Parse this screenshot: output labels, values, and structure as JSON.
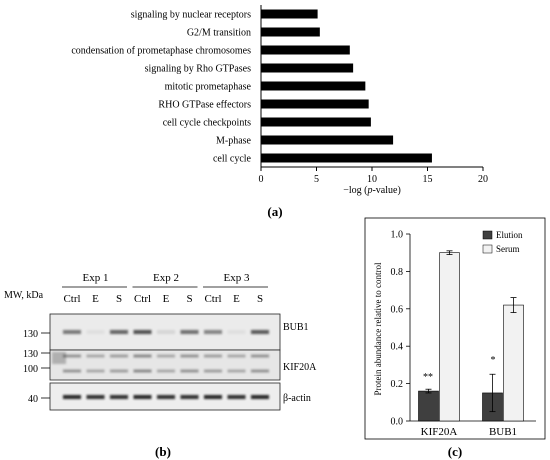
{
  "panel_a": {
    "label": "(a)",
    "xlabel": "−log (p-value)",
    "xlabel_parts": [
      "−log (",
      "p",
      "-value)"
    ]
  },
  "panel_b": {
    "label": "(b)",
    "mw_label": "MW, kDa",
    "experiments": [
      "Exp 1",
      "Exp 2",
      "Exp 3"
    ],
    "lanes": [
      "Ctrl",
      "E",
      "S",
      "Ctrl",
      "E",
      "S",
      "Ctrl",
      "E",
      "S"
    ],
    "mw_markers": [
      "130",
      "130",
      "100",
      "40"
    ],
    "proteins": [
      "BUB1",
      "KIF20A",
      "β-actin"
    ],
    "bands": {
      "BUB1": [
        0.55,
        0.05,
        0.65,
        0.75,
        0.1,
        0.6,
        0.5,
        0.05,
        0.7
      ],
      "KIF20A": [
        0.4,
        0.3,
        0.35,
        0.45,
        0.3,
        0.4,
        0.35,
        0.3,
        0.4
      ],
      "beta_actin": [
        0.95,
        0.9,
        0.9,
        0.95,
        0.9,
        0.9,
        0.95,
        0.9,
        0.95
      ]
    }
  },
  "panel_c": {
    "label": "(c)",
    "legend": [
      "Elution",
      "Serum"
    ],
    "colors": {
      "Elution": "#3f3f3f",
      "Serum": "#f2f2f2"
    },
    "annotations": [
      "**",
      "*"
    ]
  },
  "chart_data": [
    {
      "type": "bar",
      "orientation": "horizontal",
      "categories": [
        "signaling by nuclear receptors",
        "G2/M transition",
        "condensation of prometaphase chromosomes",
        "signaling by Rho GTPases",
        "mitotic prometaphase",
        "RHO GTPase effectors",
        "cell cycle checkpoints",
        "M-phase",
        "cell cycle"
      ],
      "values": [
        5.1,
        5.3,
        8.0,
        8.3,
        9.4,
        9.7,
        9.9,
        11.9,
        15.4
      ],
      "xlabel": "−log (p-value)",
      "xlim": [
        0,
        20
      ],
      "xticks": [
        0,
        5,
        10,
        15,
        20
      ],
      "grid": false
    },
    {
      "type": "bar",
      "categories": [
        "KIF20A",
        "BUB1"
      ],
      "series": [
        {
          "name": "Elution",
          "values": [
            0.16,
            0.15
          ],
          "errors": [
            0.01,
            0.1
          ]
        },
        {
          "name": "Serum",
          "values": [
            0.9,
            0.62
          ],
          "errors": [
            0.01,
            0.04
          ]
        }
      ],
      "ylabel": "Protein abundance relative to control",
      "ylim": [
        0,
        1.0
      ],
      "yticks": [
        0.0,
        0.2,
        0.4,
        0.6,
        0.8,
        1.0
      ],
      "legend": "top-left"
    }
  ]
}
